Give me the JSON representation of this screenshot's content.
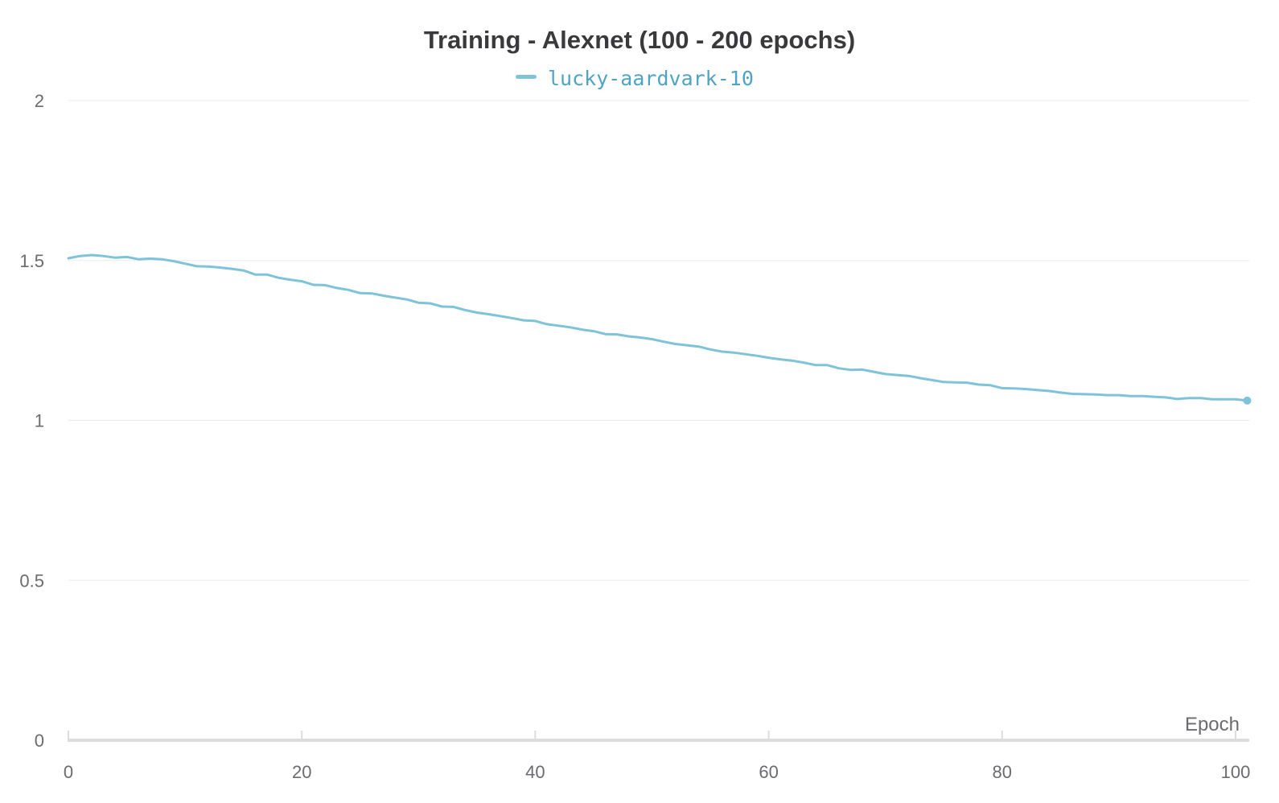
{
  "chart_data": {
    "type": "line",
    "title": "Training - Alexnet (100 - 200 epochs)",
    "xlabel": "Epoch",
    "ylabel": "",
    "xlim": [
      0,
      101
    ],
    "ylim": [
      0,
      2
    ],
    "xticks": [
      0,
      20,
      40,
      60,
      80,
      100
    ],
    "xtick_labels": [
      "0",
      "20",
      "40",
      "60",
      "80",
      "100"
    ],
    "yticks": [
      0,
      0.5,
      1,
      1.5,
      2
    ],
    "ytick_labels": [
      "0",
      "0.5",
      "1",
      "1.5",
      "2"
    ],
    "grid": true,
    "legend": "top-center",
    "series": [
      {
        "name": "lucky-aardvark-10",
        "color": "#7ec3d9",
        "label_color": "#4fa3c4",
        "x": [
          0,
          1,
          2,
          3,
          4,
          5,
          6,
          7,
          8,
          9,
          10,
          11,
          12,
          13,
          14,
          15,
          16,
          17,
          18,
          19,
          20,
          21,
          22,
          23,
          24,
          25,
          26,
          27,
          28,
          29,
          30,
          31,
          32,
          33,
          34,
          35,
          36,
          37,
          38,
          39,
          40,
          41,
          42,
          43,
          44,
          45,
          46,
          47,
          48,
          49,
          50,
          51,
          52,
          53,
          54,
          55,
          56,
          57,
          58,
          59,
          60,
          61,
          62,
          63,
          64,
          65,
          66,
          67,
          68,
          69,
          70,
          71,
          72,
          73,
          74,
          75,
          76,
          77,
          78,
          79,
          80,
          81,
          82,
          83,
          84,
          85,
          86,
          87,
          88,
          89,
          90,
          91,
          92,
          93,
          94,
          95,
          96,
          97,
          98,
          99,
          100,
          101
        ],
        "values": [
          1.507,
          1.514,
          1.517,
          1.514,
          1.509,
          1.511,
          1.504,
          1.506,
          1.504,
          1.498,
          1.49,
          1.482,
          1.481,
          1.478,
          1.474,
          1.469,
          1.456,
          1.456,
          1.446,
          1.44,
          1.435,
          1.424,
          1.423,
          1.414,
          1.408,
          1.398,
          1.397,
          1.39,
          1.384,
          1.378,
          1.368,
          1.366,
          1.356,
          1.355,
          1.345,
          1.337,
          1.332,
          1.326,
          1.32,
          1.313,
          1.311,
          1.301,
          1.296,
          1.291,
          1.284,
          1.279,
          1.27,
          1.269,
          1.263,
          1.259,
          1.254,
          1.246,
          1.239,
          1.235,
          1.231,
          1.222,
          1.215,
          1.212,
          1.207,
          1.202,
          1.196,
          1.191,
          1.187,
          1.181,
          1.173,
          1.173,
          1.163,
          1.158,
          1.159,
          1.152,
          1.145,
          1.142,
          1.139,
          1.132,
          1.126,
          1.12,
          1.119,
          1.118,
          1.112,
          1.11,
          1.101,
          1.1,
          1.098,
          1.095,
          1.092,
          1.087,
          1.083,
          1.082,
          1.081,
          1.079,
          1.079,
          1.076,
          1.076,
          1.074,
          1.072,
          1.067,
          1.07,
          1.07,
          1.066,
          1.066,
          1.066,
          1.062
        ]
      }
    ]
  }
}
